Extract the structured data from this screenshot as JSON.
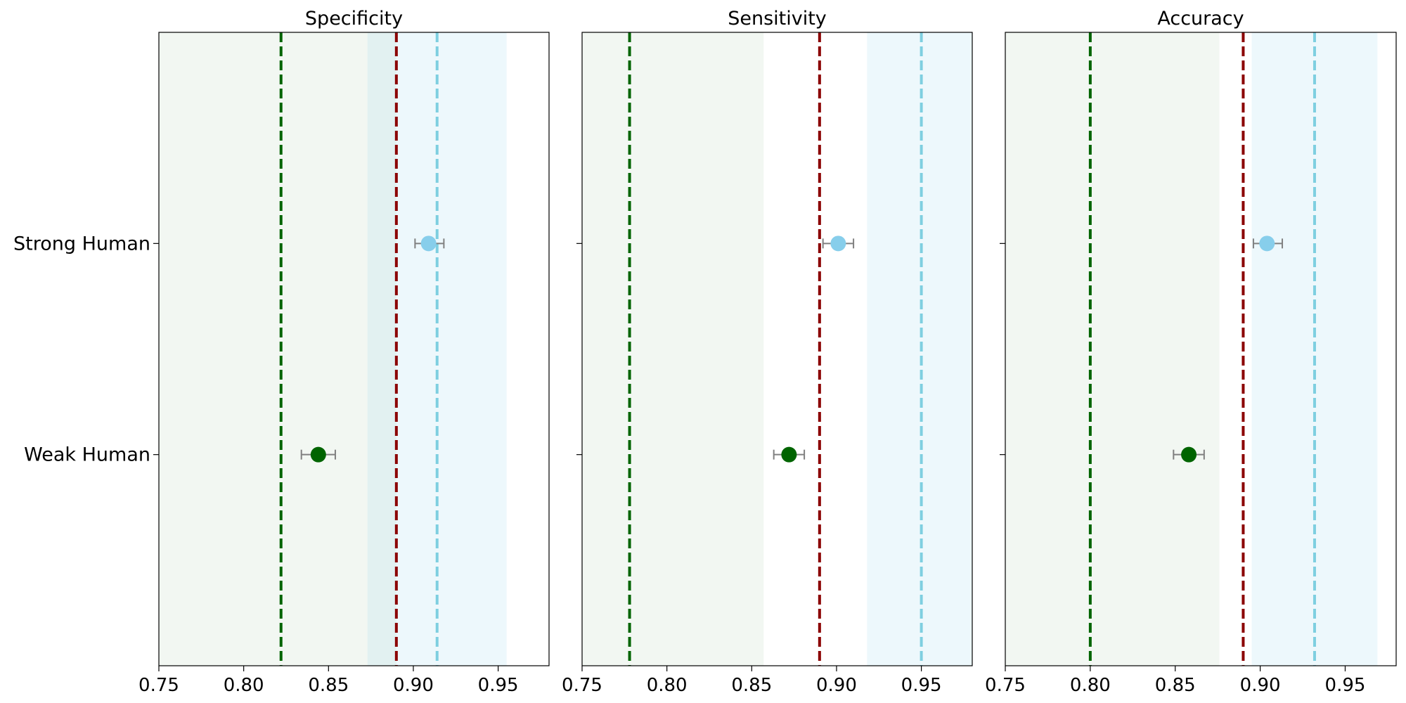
{
  "chart_data": [
    {
      "type": "scatter",
      "title": "Specificity",
      "xlim": [
        0.75,
        0.98
      ],
      "ylim": [
        -1,
        2
      ],
      "x_ticks": [
        0.75,
        0.8,
        0.85,
        0.9,
        0.95
      ],
      "x_tick_labels": [
        "0.75",
        "0.80",
        "0.85",
        "0.90",
        "0.95"
      ],
      "categories": [
        "Strong Human",
        "Weak Human"
      ],
      "show_category_labels": true,
      "points": [
        {
          "category": "Strong Human",
          "value": 0.909,
          "err_low": 0.901,
          "err_high": 0.918,
          "color": "#87CEEB"
        },
        {
          "category": "Weak Human",
          "value": 0.844,
          "err_low": 0.834,
          "err_high": 0.854,
          "color": "#006400"
        }
      ],
      "bands": [
        {
          "from": 0.75,
          "to": 0.89,
          "color": "#006400",
          "opacity": 0.05
        },
        {
          "from": 0.873,
          "to": 0.955,
          "color": "#87CEEB",
          "opacity": 0.15
        }
      ],
      "ref_lines": [
        {
          "x": 0.822,
          "color": "#006400"
        },
        {
          "x": 0.89,
          "color": "#8B0000"
        },
        {
          "x": 0.914,
          "color": "#7ECFE0"
        }
      ]
    },
    {
      "type": "scatter",
      "title": "Sensitivity",
      "xlim": [
        0.75,
        0.98
      ],
      "ylim": [
        -1,
        2
      ],
      "x_ticks": [
        0.75,
        0.8,
        0.85,
        0.9,
        0.95
      ],
      "x_tick_labels": [
        "0.75",
        "0.80",
        "0.85",
        "0.90",
        "0.95"
      ],
      "categories": [
        "Strong Human",
        "Weak Human"
      ],
      "show_category_labels": false,
      "points": [
        {
          "category": "Strong Human",
          "value": 0.901,
          "err_low": 0.892,
          "err_high": 0.91,
          "color": "#87CEEB"
        },
        {
          "category": "Weak Human",
          "value": 0.872,
          "err_low": 0.863,
          "err_high": 0.881,
          "color": "#006400"
        }
      ],
      "bands": [
        {
          "from": 0.75,
          "to": 0.857,
          "color": "#006400",
          "opacity": 0.05
        },
        {
          "from": 0.918,
          "to": 0.98,
          "color": "#87CEEB",
          "opacity": 0.15
        }
      ],
      "ref_lines": [
        {
          "x": 0.778,
          "color": "#006400"
        },
        {
          "x": 0.89,
          "color": "#8B0000"
        },
        {
          "x": 0.95,
          "color": "#7ECFE0"
        }
      ]
    },
    {
      "type": "scatter",
      "title": "Accuracy",
      "xlim": [
        0.75,
        0.98
      ],
      "ylim": [
        -1,
        2
      ],
      "x_ticks": [
        0.75,
        0.8,
        0.85,
        0.9,
        0.95
      ],
      "x_tick_labels": [
        "0.75",
        "0.80",
        "0.85",
        "0.90",
        "0.95"
      ],
      "categories": [
        "Strong Human",
        "Weak Human"
      ],
      "show_category_labels": false,
      "points": [
        {
          "category": "Strong Human",
          "value": 0.904,
          "err_low": 0.896,
          "err_high": 0.913,
          "color": "#87CEEB"
        },
        {
          "category": "Weak Human",
          "value": 0.858,
          "err_low": 0.849,
          "err_high": 0.867,
          "color": "#006400"
        }
      ],
      "bands": [
        {
          "from": 0.75,
          "to": 0.876,
          "color": "#006400",
          "opacity": 0.05
        },
        {
          "from": 0.895,
          "to": 0.969,
          "color": "#87CEEB",
          "opacity": 0.15
        }
      ],
      "ref_lines": [
        {
          "x": 0.8,
          "color": "#006400"
        },
        {
          "x": 0.89,
          "color": "#8B0000"
        },
        {
          "x": 0.932,
          "color": "#7ECFE0"
        }
      ]
    }
  ]
}
